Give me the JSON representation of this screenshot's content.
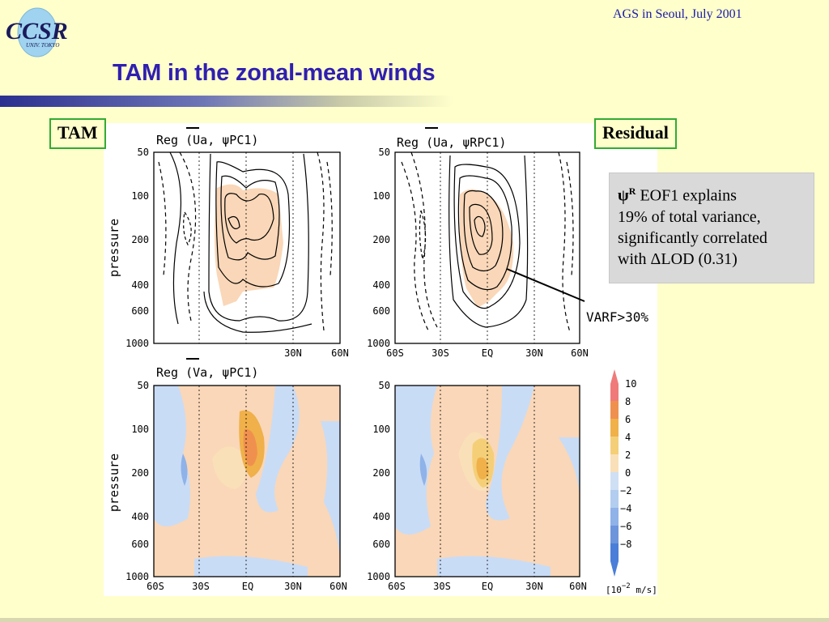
{
  "header": {
    "logo_text": "CCSR",
    "logo_sub": "UNIV. TOKYO",
    "conference": "AGS in Seoul, July 2001",
    "title": "TAM in the zonal-mean winds"
  },
  "tags": {
    "tam": "TAM",
    "residual": "Residual"
  },
  "note": {
    "symbol": "ψ",
    "superscript": "R",
    "line1_rest": " EOF1 explains",
    "line2": "19% of total variance,",
    "line3": "significantly correlated",
    "line4": "with ΔLOD (0.31)"
  },
  "figure": {
    "panels": [
      {
        "title": "Reg (Ua, ψPC1)",
        "ylabel": "pressure"
      },
      {
        "title": "Reg (Ua, ψRPC1)"
      },
      {
        "title": "Reg (Va, ψPC1)",
        "ylabel": "pressure"
      },
      {
        "title": ""
      }
    ],
    "y_ticks": [
      "50",
      "100",
      "200",
      "400",
      "600",
      "1000"
    ],
    "x_ticks_top_left": [
      "30N",
      "60N"
    ],
    "x_ticks": [
      "60S",
      "30S",
      "EQ",
      "30N",
      "60N"
    ],
    "annotation": "VARF>30%",
    "colorbar": {
      "values": [
        "10",
        "8",
        "6",
        "4",
        "2",
        "0",
        "−2",
        "−4",
        "−6",
        "−8"
      ],
      "unit_pre": "[10",
      "unit_exp": "−2",
      "unit_post": " m/s]",
      "colors": [
        "#f07a7a",
        "#f0904e",
        "#f0b04a",
        "#f5cf78",
        "#f9e0b8",
        "#cfe0f5",
        "#b2cdf0",
        "#8fb2e8",
        "#6c95dc",
        "#4a7ed8"
      ]
    },
    "colors": {
      "shade_positive": "#f9d7b8",
      "shade_negative": "#c9dcf6",
      "contour": "#000000"
    }
  }
}
